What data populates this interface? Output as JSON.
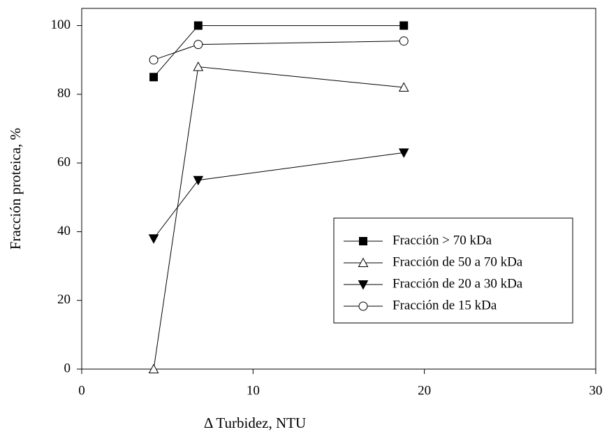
{
  "chart_data": {
    "type": "line",
    "xlabel": "Δ Turbidez, NTU",
    "ylabel": "Fracción proteica, %",
    "xlim": [
      0,
      30
    ],
    "xticks": [
      0,
      10,
      20,
      30
    ],
    "ylim": [
      0,
      105
    ],
    "yticks": [
      0,
      20,
      40,
      60,
      80,
      100
    ],
    "legend": "lower right",
    "x": [
      4.2,
      6.8,
      18.8
    ],
    "series": [
      {
        "name": "Fracción > 70 kDa",
        "color": "#000000",
        "marker": "square",
        "filled": true,
        "values": [
          85,
          100,
          100
        ]
      },
      {
        "name": "Fracción de 50 a 70 kDa",
        "color": "#000000",
        "marker": "triangle-up",
        "filled": false,
        "values": [
          0,
          88,
          82
        ]
      },
      {
        "name": "Fracción de 20 a 30 kDa",
        "color": "#000000",
        "marker": "triangle-down",
        "filled": true,
        "values": [
          38,
          55,
          63
        ]
      },
      {
        "name": "Fracción de 15 kDa",
        "color": "#000000",
        "marker": "circle",
        "filled": false,
        "values": [
          90,
          94.5,
          95.5
        ]
      }
    ]
  }
}
